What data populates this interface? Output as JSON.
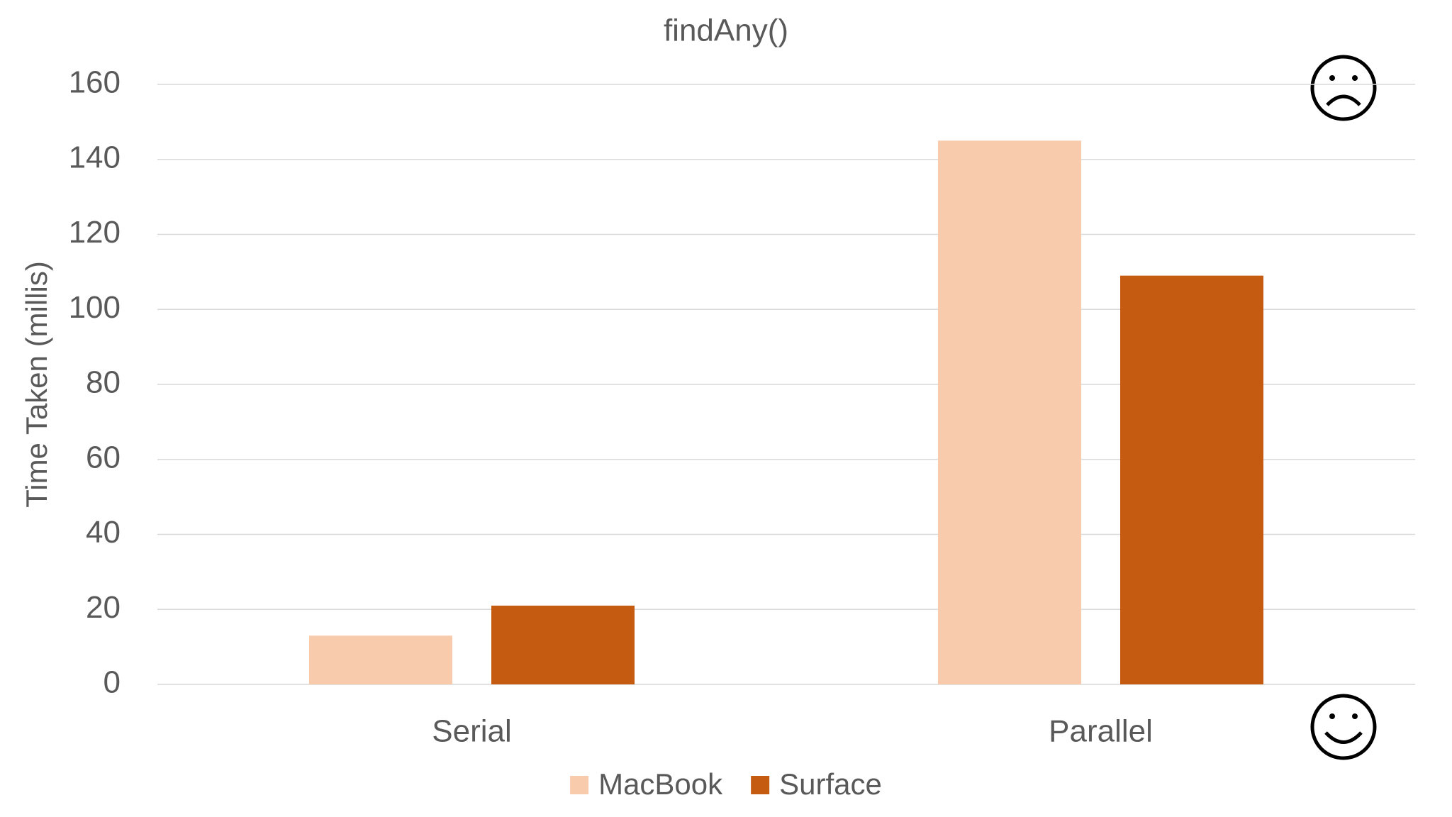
{
  "chart_data": {
    "type": "bar",
    "title": "findAny()",
    "y_label": "Time Taken (millis)",
    "categories": [
      "Serial",
      "Parallel"
    ],
    "series": [
      {
        "name": "MacBook",
        "color": "#f8cbad",
        "values": [
          13,
          145
        ]
      },
      {
        "name": "Surface",
        "color": "#c55a11",
        "values": [
          21,
          109
        ]
      }
    ],
    "ylim": [
      0,
      160
    ],
    "yticks": [
      0,
      20,
      40,
      60,
      80,
      100,
      120,
      140,
      160
    ],
    "grid": true,
    "legend": "bottom"
  }
}
